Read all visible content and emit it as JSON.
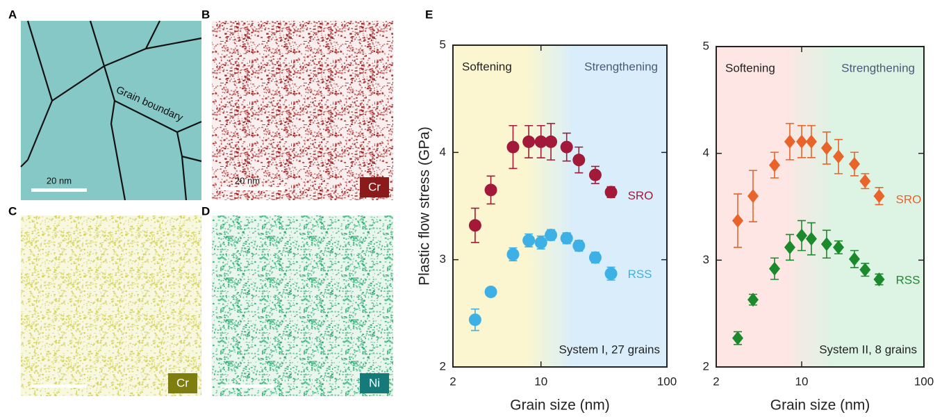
{
  "panels": [
    {
      "label": "A",
      "scale_bar": "20 nm",
      "annotation": "Grain boundary"
    },
    {
      "label": "B",
      "scale_bar": "20 nm",
      "element": "Cr"
    },
    {
      "label": "C",
      "element": "Cr"
    },
    {
      "label": "D",
      "element": "Ni"
    }
  ],
  "panel_e_label": "E",
  "chart_data": [
    {
      "type": "scatter",
      "xlabel": "Grain size (nm)",
      "ylabel": "Plastic flow stress (GPa)",
      "xscale": "log",
      "xlim": [
        2,
        100
      ],
      "xticks": [
        2,
        10,
        100
      ],
      "ylim": [
        2,
        5
      ],
      "yticks": [
        2,
        3,
        4,
        5
      ],
      "regions": [
        {
          "name": "Softening",
          "color": "#fbf6cf"
        },
        {
          "name": "Strengthening",
          "color": "#d9eefa"
        }
      ],
      "note": "System I, 27 grains",
      "x": [
        3,
        4,
        6,
        8,
        10,
        12,
        16,
        20,
        27,
        36
      ],
      "series": [
        {
          "name": "SRO",
          "color": "#a3193a",
          "marker": "circle",
          "values": [
            3.32,
            3.65,
            4.05,
            4.1,
            4.1,
            4.1,
            4.05,
            3.93,
            3.79,
            3.63
          ],
          "errors": [
            0.16,
            0.13,
            0.2,
            0.15,
            0.15,
            0.17,
            0.13,
            0.12,
            0.08,
            0.05
          ]
        },
        {
          "name": "RSS",
          "color": "#3db1e6",
          "marker": "circle",
          "values": [
            2.44,
            2.7,
            3.05,
            3.18,
            3.16,
            3.23,
            3.2,
            3.13,
            3.02,
            2.87
          ],
          "errors": [
            0.1,
            0.02,
            0.06,
            0.06,
            0.06,
            0.05,
            0.05,
            0.05,
            0.05,
            0.06
          ]
        }
      ]
    },
    {
      "type": "scatter",
      "xlabel": "Grain size (nm)",
      "xscale": "log",
      "xlim": [
        2,
        100
      ],
      "xticks": [
        2,
        10,
        100
      ],
      "ylim": [
        2,
        5
      ],
      "yticks": [
        2,
        3,
        4,
        5
      ],
      "regions": [
        {
          "name": "Softening",
          "color": "#fde6e4"
        },
        {
          "name": "Strengthening",
          "color": "#ddf3e3"
        }
      ],
      "note": "System II, 8 grains",
      "x": [
        3,
        4,
        6,
        8,
        10,
        12,
        16,
        20,
        27,
        33,
        43
      ],
      "series": [
        {
          "name": "SRO",
          "color": "#e8642a",
          "marker": "diamond",
          "values": [
            3.37,
            3.6,
            3.89,
            4.11,
            4.11,
            4.11,
            4.05,
            3.97,
            3.9,
            3.74,
            3.6
          ],
          "errors": [
            0.25,
            0.24,
            0.12,
            0.17,
            0.15,
            0.15,
            0.15,
            0.16,
            0.11,
            0.07,
            0.08
          ]
        },
        {
          "name": "RSS",
          "color": "#1a8a2c",
          "marker": "diamond",
          "values": [
            2.27,
            2.63,
            2.92,
            3.12,
            3.23,
            3.2,
            3.15,
            3.12,
            3.01,
            2.91,
            2.82
          ],
          "errors": [
            0.06,
            0.05,
            0.1,
            0.12,
            0.14,
            0.15,
            0.13,
            0.06,
            0.08,
            0.06,
            0.05
          ]
        }
      ]
    }
  ]
}
